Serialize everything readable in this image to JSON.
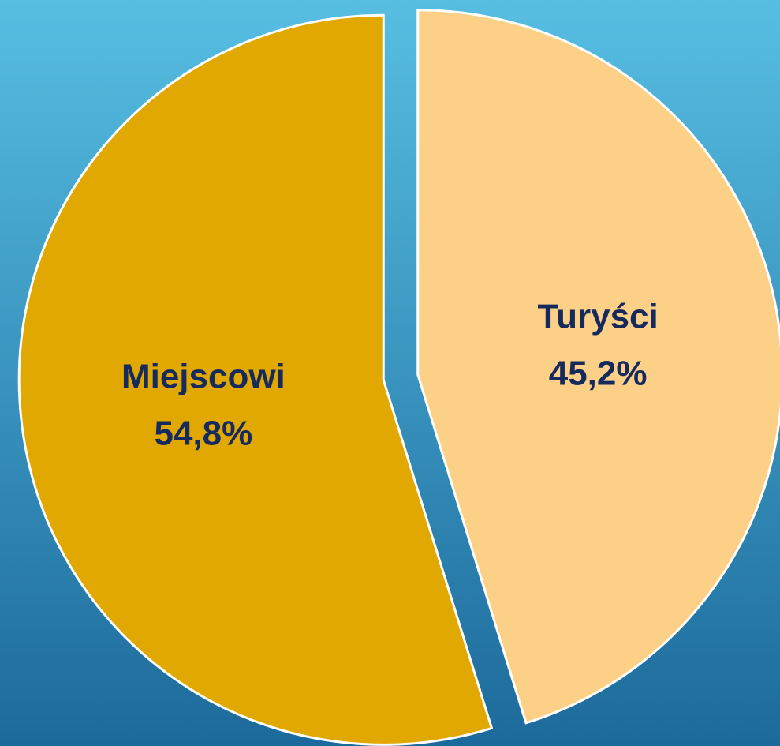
{
  "chart_data": {
    "type": "pie",
    "categories": [
      "Turyści",
      "Miejscowi"
    ],
    "values": [
      45.2,
      54.8
    ],
    "value_labels": [
      "45,2%",
      "54,8%"
    ],
    "colors": [
      "#fdd087",
      "#e0a800"
    ]
  }
}
